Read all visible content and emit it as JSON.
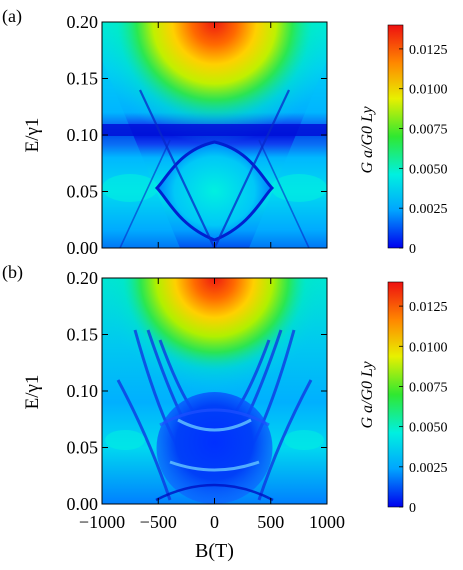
{
  "figure": {
    "panels": [
      "(a)",
      "(b)"
    ]
  },
  "chart_data": [
    {
      "type": "heatmap",
      "panel_label": "(a)",
      "xlabel": "",
      "ylabel": "E/γ1",
      "xlim": [
        -1000,
        1000
      ],
      "ylim": [
        0.0,
        0.2
      ],
      "y_ticks": [
        "0.00",
        "0.05",
        "0.10",
        "0.15",
        "0.20"
      ],
      "x_ticks": [],
      "colorbar": {
        "label": "G a/G0 Ly",
        "range": [
          0,
          0.014
        ],
        "ticks": [
          "0",
          "0.0025",
          "0.0050",
          "0.0075",
          "0.0100",
          "0.0125"
        ],
        "colors": [
          "#0000ee",
          "#00a5ff",
          "#00f0e0",
          "#30e830",
          "#e8f000",
          "#ff8800",
          "#ee1010"
        ]
      },
      "features": [
        {
          "name": "dark horizontal band",
          "E": 0.1
        },
        {
          "name": "lens-shaped curves crossing",
          "B": 0,
          "E_range": [
            0.0,
            0.09
          ]
        },
        {
          "name": "maximum conductance region",
          "B": 0,
          "E": 0.2,
          "value": 0.014
        }
      ]
    },
    {
      "type": "heatmap",
      "panel_label": "(b)",
      "xlabel": "B(T)",
      "ylabel": "E/γ1",
      "xlim": [
        -1000,
        1000
      ],
      "ylim": [
        0.0,
        0.2
      ],
      "x_ticks": [
        "−1000",
        "−500",
        "0",
        "500",
        "1000"
      ],
      "y_ticks": [
        "0.00",
        "0.05",
        "0.10",
        "0.15",
        "0.20"
      ],
      "colorbar": {
        "label": "G a/G0 Ly",
        "range": [
          0,
          0.014
        ],
        "ticks": [
          "0",
          "0.0025",
          "0.0050",
          "0.0075",
          "0.0100",
          "0.0125"
        ],
        "colors": [
          "#0000ee",
          "#00a5ff",
          "#00f0e0",
          "#30e830",
          "#e8f000",
          "#ff8800",
          "#ee1010"
        ]
      },
      "features": [
        {
          "name": "Landau-level fans",
          "B_range": [
            -700,
            700
          ]
        },
        {
          "name": "dark lens region",
          "E_range": [
            0.0,
            0.09
          ]
        },
        {
          "name": "maximum conductance region",
          "B": 0,
          "E": 0.2,
          "value": 0.014
        }
      ]
    }
  ]
}
